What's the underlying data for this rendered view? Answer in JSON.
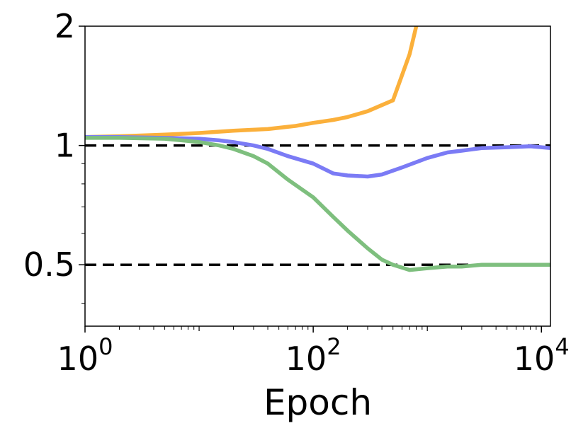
{
  "chart_data": {
    "type": "line",
    "title": "",
    "xlabel": "Epoch",
    "ylabel": "",
    "xscale": "log",
    "yscale": "log",
    "xlim": [
      1,
      12000
    ],
    "ylim": [
      0.35,
      2.0
    ],
    "grid": false,
    "legend": "none",
    "x_ticks": [
      {
        "value": 1,
        "base": "10",
        "exp": "0"
      },
      {
        "value": 100,
        "base": "10",
        "exp": "2"
      },
      {
        "value": 10000,
        "base": "10",
        "exp": "4"
      }
    ],
    "y_ticks": [
      {
        "value": 0.5,
        "label": "0.5"
      },
      {
        "value": 1,
        "label": "1"
      },
      {
        "value": 2,
        "label": "2"
      }
    ],
    "y_minor_ticks": [
      0.4,
      0.6,
      0.7,
      0.8,
      0.9
    ],
    "reference_lines": [
      {
        "y": 1.0,
        "color": "#000000",
        "style": "dashed"
      },
      {
        "y": 0.5,
        "color": "#000000",
        "style": "dashed"
      }
    ],
    "series": [
      {
        "color": "#FBB03B",
        "x": [
          1,
          2,
          5,
          10,
          20,
          40,
          70,
          100,
          150,
          200,
          300,
          500,
          700,
          800
        ],
        "y": [
          1.05,
          1.055,
          1.065,
          1.075,
          1.09,
          1.1,
          1.12,
          1.14,
          1.16,
          1.18,
          1.22,
          1.3,
          1.7,
          2.0
        ]
      },
      {
        "color": "#7B7BF5",
        "x": [
          1,
          2,
          5,
          10,
          15,
          20,
          30,
          40,
          60,
          100,
          150,
          200,
          300,
          400,
          600,
          1000,
          1500,
          2000,
          3000,
          5000,
          8000,
          10000,
          12000
        ],
        "y": [
          1.05,
          1.05,
          1.045,
          1.04,
          1.03,
          1.02,
          1.0,
          0.98,
          0.94,
          0.9,
          0.85,
          0.84,
          0.835,
          0.845,
          0.88,
          0.93,
          0.96,
          0.97,
          0.985,
          0.99,
          0.995,
          0.99,
          0.985
        ]
      },
      {
        "color": "#7EBF7E",
        "x": [
          1,
          2,
          5,
          10,
          15,
          20,
          30,
          40,
          60,
          100,
          150,
          200,
          300,
          400,
          500,
          700,
          1000,
          1500,
          2000,
          3000,
          5000,
          10000,
          12000
        ],
        "y": [
          1.045,
          1.045,
          1.04,
          1.02,
          1.0,
          0.98,
          0.94,
          0.9,
          0.82,
          0.74,
          0.66,
          0.61,
          0.55,
          0.515,
          0.5,
          0.485,
          0.49,
          0.495,
          0.495,
          0.5,
          0.5,
          0.5,
          0.5
        ]
      }
    ]
  }
}
